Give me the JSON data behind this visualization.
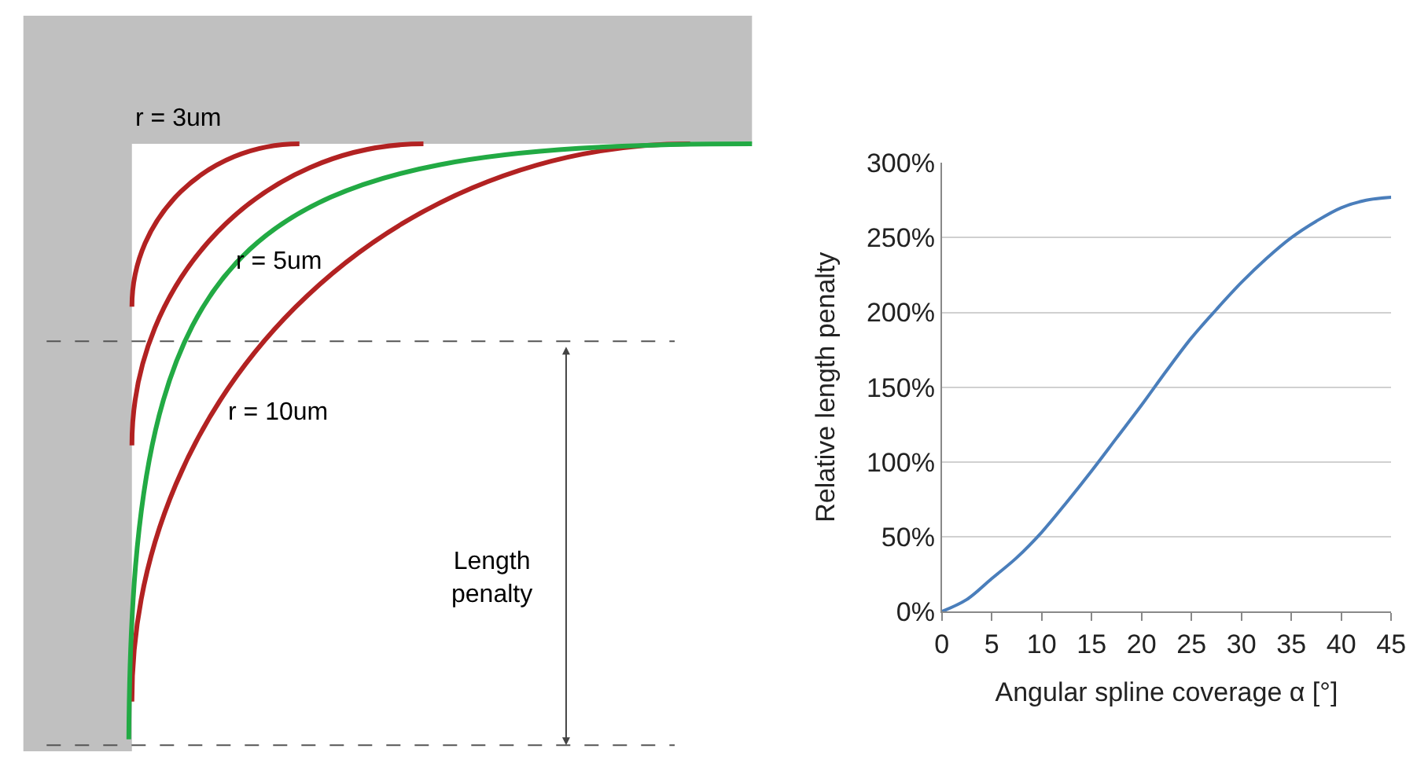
{
  "chart_data": [
    {
      "type": "other",
      "annotations": [
        "r = 3um",
        "r = 5um",
        "r = 10um",
        "Length penalty"
      ]
    },
    {
      "type": "line",
      "xlabel": "Angular spline coverage α [°]",
      "ylabel": "Relative length penalty",
      "x": [
        0,
        2.5,
        5,
        7.5,
        10,
        12.5,
        15,
        17.5,
        20,
        22.5,
        25,
        27.5,
        30,
        32.5,
        35,
        37.5,
        40,
        42.5,
        45
      ],
      "series": [
        {
          "color": "#4a7ebb",
          "values": [
            0,
            8,
            22,
            36,
            53,
            73,
            94,
            116,
            138,
            161,
            183,
            202,
            220,
            236,
            250,
            261,
            270,
            275,
            277
          ]
        }
      ],
      "xlim": [
        0,
        45
      ],
      "xticks": [
        0,
        5,
        10,
        15,
        20,
        25,
        30,
        35,
        40,
        45
      ],
      "ylim": [
        0,
        300
      ],
      "yticks": [
        {
          "value": 0,
          "label": "0%"
        },
        {
          "value": 50,
          "label": "50%"
        },
        {
          "value": 100,
          "label": "100%"
        },
        {
          "value": 150,
          "label": "150%"
        },
        {
          "value": 200,
          "label": "200%"
        },
        {
          "value": 250,
          "label": "250%"
        },
        {
          "value": 300,
          "label": "300%"
        }
      ],
      "grid": "y",
      "marker": "none",
      "line_style": "solid"
    }
  ]
}
